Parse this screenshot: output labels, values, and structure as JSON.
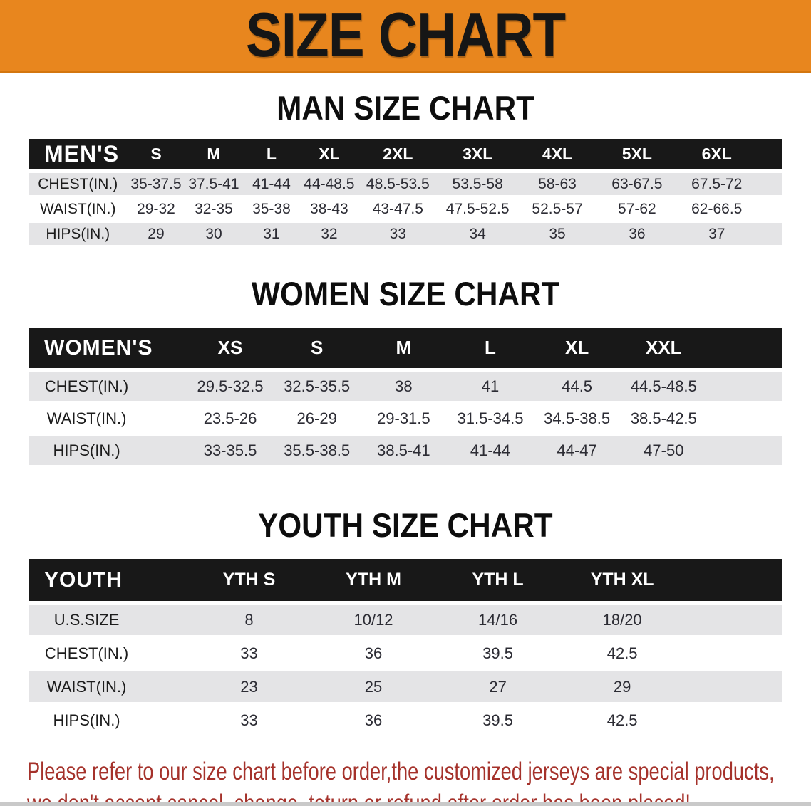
{
  "banner": {
    "title": "SIZE CHART",
    "bg_color": "#E8861E",
    "title_color": "#161616"
  },
  "sections": [
    {
      "heading": "MAN SIZE CHART",
      "table": {
        "label": "MEN'S",
        "columns": [
          "S",
          "M",
          "L",
          "XL",
          "2XL",
          "3XL",
          "4XL",
          "5XL",
          "6XL"
        ],
        "rows": [
          {
            "label": "CHEST(IN.)",
            "values": [
              "35-37.5",
              "37.5-41",
              "41-44",
              "44-48.5",
              "48.5-53.5",
              "53.5-58",
              "58-63",
              "63-67.5",
              "67.5-72"
            ]
          },
          {
            "label": "WAIST(IN.)",
            "values": [
              "29-32",
              "32-35",
              "35-38",
              "38-43",
              "43-47.5",
              "47.5-52.5",
              "52.5-57",
              "57-62",
              "62-66.5"
            ]
          },
          {
            "label": "HIPS(IN.)",
            "values": [
              "29",
              "30",
              "31",
              "32",
              "33",
              "34",
              "35",
              "36",
              "37"
            ]
          }
        ]
      }
    },
    {
      "heading": "WOMEN SIZE CHART",
      "table": {
        "label": "WOMEN'S",
        "columns": [
          "XS",
          "S",
          "M",
          "L",
          "XL",
          "XXL"
        ],
        "rows": [
          {
            "label": "CHEST(IN.)",
            "values": [
              "29.5-32.5",
              "32.5-35.5",
              "38",
              "41",
              "44.5",
              "44.5-48.5"
            ]
          },
          {
            "label": "WAIST(IN.)",
            "values": [
              "23.5-26",
              "26-29",
              "29-31.5",
              "31.5-34.5",
              "34.5-38.5",
              "38.5-42.5"
            ]
          },
          {
            "label": "HIPS(IN.)",
            "values": [
              "33-35.5",
              "35.5-38.5",
              "38.5-41",
              "41-44",
              "44-47",
              "47-50"
            ]
          }
        ]
      }
    },
    {
      "heading": "YOUTH SIZE CHART",
      "table": {
        "label": "YOUTH",
        "columns": [
          "YTH S",
          "YTH M",
          "YTH L",
          "YTH XL"
        ],
        "rows": [
          {
            "label": "U.S.SIZE",
            "values": [
              "8",
              "10/12",
              "14/16",
              "18/20"
            ]
          },
          {
            "label": "CHEST(IN.)",
            "values": [
              "33",
              "36",
              "39.5",
              "42.5"
            ]
          },
          {
            "label": "WAIST(IN.)",
            "values": [
              "23",
              "25",
              "27",
              "29"
            ]
          },
          {
            "label": "HIPS(IN.)",
            "values": [
              "33",
              "36",
              "39.5",
              "42.5"
            ]
          }
        ]
      }
    }
  ],
  "disclaimer": {
    "line1": "Please refer to our size chart before order,the customized jerseys are special products,",
    "line2": "we don't accept cancel, change, teturn or refund after order has been placed!",
    "color": "#A5322B"
  },
  "colors": {
    "header_band": "#181818",
    "row_shaded": "#e4e4e6",
    "row_plain": "#ffffff"
  }
}
